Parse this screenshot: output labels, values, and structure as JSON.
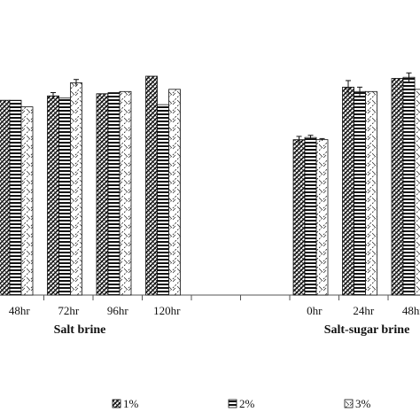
{
  "chart_data": {
    "type": "bar",
    "ylim": [
      0,
      100
    ],
    "grid": false,
    "legend_position": "bottom",
    "categories": [
      "48hr",
      "72hr",
      "96hr",
      "120hr",
      "",
      "",
      "0hr",
      "24hr",
      "48hr"
    ],
    "groups": [
      {
        "label": "Salt brine",
        "categories": [
          "48hr",
          "72hr",
          "96hr",
          "120hr"
        ]
      },
      {
        "label": "Salt-sugar brine",
        "categories": [
          "0hr",
          "24hr",
          "48hr"
        ]
      }
    ],
    "series": [
      {
        "name": "1%",
        "pattern": "diagonal-hatch",
        "values": [
          89,
          91,
          92,
          100,
          null,
          null,
          71,
          95,
          99
        ],
        "errors": [
          0,
          1.5,
          0,
          0,
          null,
          null,
          1.5,
          3,
          0
        ]
      },
      {
        "name": "2%",
        "pattern": "horizontal-stripes",
        "values": [
          89,
          90,
          92.5,
          87,
          null,
          null,
          72,
          93,
          99.5
        ],
        "errors": [
          0,
          0,
          0,
          0,
          null,
          null,
          1,
          2,
          2
        ]
      },
      {
        "name": "3%",
        "pattern": "zigzag",
        "values": [
          86,
          97,
          93,
          94,
          null,
          null,
          71,
          93,
          94
        ],
        "errors": [
          0,
          1.5,
          0,
          0,
          null,
          null,
          0.5,
          0,
          0
        ]
      }
    ]
  }
}
